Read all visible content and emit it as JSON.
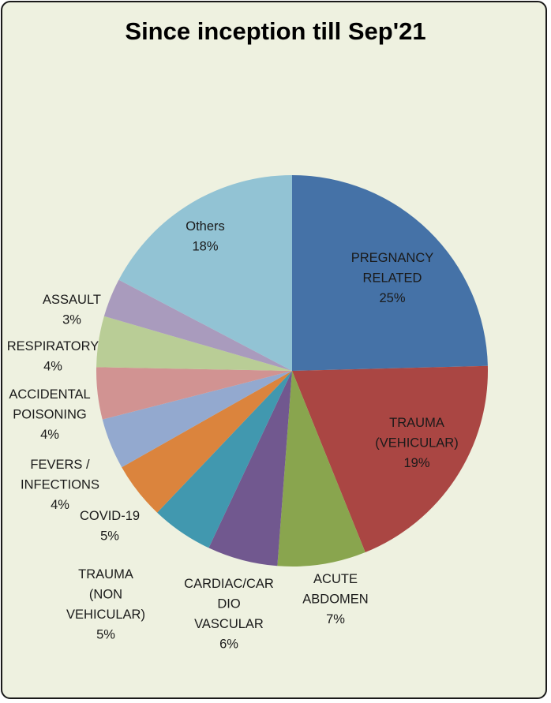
{
  "chart_data": {
    "type": "pie",
    "title": "Since inception till Sep'21",
    "slices": [
      {
        "label": "PREGNANCY RELATED",
        "lines": [
          "PREGNANCY",
          "RELATED"
        ],
        "percent_label": "25%",
        "value": 24.6,
        "color": "#4572a7"
      },
      {
        "label": "TRAUMA (VEHICULAR)",
        "lines": [
          "TRAUMA",
          "(VEHICULAR)"
        ],
        "percent_label": "19%",
        "value": 19.3,
        "color": "#aa4643"
      },
      {
        "label": "ACUTE ABDOMEN",
        "lines": [
          "ACUTE",
          "ABDOMEN"
        ],
        "percent_label": "7%",
        "value": 7.3,
        "color": "#89a54e"
      },
      {
        "label": "CARDIAC/CARDIO VASCULAR",
        "lines": [
          "CARDIAC/CAR",
          "DIO",
          "VASCULAR"
        ],
        "percent_label": "6%",
        "value": 5.8,
        "color": "#71588f"
      },
      {
        "label": "TRAUMA (NON VEHICULAR)",
        "lines": [
          "TRAUMA",
          "(NON",
          "VEHICULAR)"
        ],
        "percent_label": "5%",
        "value": 5.1,
        "color": "#4198af"
      },
      {
        "label": "COVID-19",
        "lines": [
          "COVID-19"
        ],
        "percent_label": "5%",
        "value": 4.7,
        "color": "#db843d"
      },
      {
        "label": "FEVERS / INFECTIONS",
        "lines": [
          "FEVERS /",
          "INFECTIONS"
        ],
        "percent_label": "4%",
        "value": 4.2,
        "color": "#93a9cf"
      },
      {
        "label": "ACCIDENTAL POISONING",
        "lines": [
          "ACCIDENTAL",
          "POISONING"
        ],
        "percent_label": "4%",
        "value": 4.3,
        "color": "#d19392"
      },
      {
        "label": "RESPIRATORY",
        "lines": [
          "RESPIRATORY"
        ],
        "percent_label": "4%",
        "value": 4.2,
        "color": "#b9cd96"
      },
      {
        "label": "ASSAULT",
        "lines": [
          "ASSAULT"
        ],
        "percent_label": "3%",
        "value": 3.2,
        "color": "#a99bbd"
      },
      {
        "label": "Others",
        "lines": [
          "Others"
        ],
        "percent_label": "18%",
        "value": 17.3,
        "color": "#92c3d4"
      }
    ]
  }
}
